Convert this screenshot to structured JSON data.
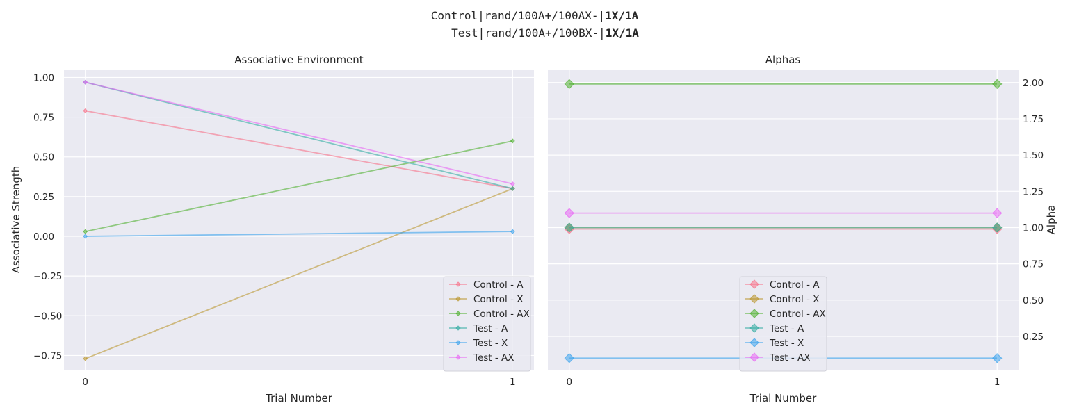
{
  "suptitle": {
    "line1_prefix": "Control|rand/100A+/100AX-|",
    "line1_bold": "1X/1A",
    "line2_prefix": "Test|rand/100A+/100BX-|",
    "line2_bold": "1X/1A"
  },
  "colors": {
    "background": "#eaeaf2",
    "grid": "#ffffff",
    "Control - A": "#f77189",
    "Control - X": "#bb9832",
    "Control - AX": "#50b131",
    "Test - A": "#36ada4",
    "Test - X": "#3ba3ec",
    "Test - AX": "#e866f4"
  },
  "chart_data": [
    {
      "type": "line",
      "title": "Associative Environment",
      "xlabel": "Trial Number",
      "ylabel": "Associative Strength",
      "x": [
        0,
        1
      ],
      "xticks": [
        "0",
        "1"
      ],
      "xlim": [
        -0.05,
        1.05
      ],
      "ylim": [
        -0.84,
        1.05
      ],
      "yticks": [
        "1.00",
        "0.75",
        "0.50",
        "0.25",
        "0.00",
        "−0.25",
        "−0.50",
        "−0.75"
      ],
      "ytick_values": [
        1.0,
        0.75,
        0.5,
        0.25,
        0.0,
        -0.25,
        -0.5,
        -0.75
      ],
      "grid": true,
      "legend_position": "bottom-right",
      "marker": "small-diamond",
      "series": [
        {
          "name": "Control - A",
          "values": [
            0.79,
            0.3
          ]
        },
        {
          "name": "Control - X",
          "values": [
            -0.77,
            0.3
          ]
        },
        {
          "name": "Control - AX",
          "values": [
            0.03,
            0.6
          ]
        },
        {
          "name": "Test - A",
          "values": [
            0.97,
            0.3
          ]
        },
        {
          "name": "Test - X",
          "values": [
            0.0,
            0.03
          ]
        },
        {
          "name": "Test - AX",
          "values": [
            0.97,
            0.33
          ]
        }
      ]
    },
    {
      "type": "line",
      "title": "Alphas",
      "xlabel": "Trial Number",
      "ylabel": "Alpha",
      "x": [
        0,
        1
      ],
      "xticks": [
        "0",
        "1"
      ],
      "xlim": [
        -0.05,
        1.05
      ],
      "ylim": [
        0.02,
        2.09
      ],
      "yticks": [
        "2.00",
        "1.75",
        "1.50",
        "1.25",
        "1.00",
        "0.75",
        "0.50",
        "0.25"
      ],
      "ytick_values": [
        2.0,
        1.75,
        1.5,
        1.25,
        1.0,
        0.75,
        0.5,
        0.25
      ],
      "y_axis_side": "right",
      "grid": true,
      "legend_position": "bottom-center",
      "marker": "large-diamond",
      "series": [
        {
          "name": "Control - A",
          "values": [
            0.99,
            0.99
          ]
        },
        {
          "name": "Control - X",
          "values": [
            1.0,
            1.0
          ]
        },
        {
          "name": "Control - AX",
          "values": [
            1.99,
            1.99
          ]
        },
        {
          "name": "Test - A",
          "values": [
            1.0,
            1.0
          ]
        },
        {
          "name": "Test - X",
          "values": [
            0.1,
            0.1
          ]
        },
        {
          "name": "Test - AX",
          "values": [
            1.1,
            1.1
          ]
        }
      ]
    }
  ]
}
